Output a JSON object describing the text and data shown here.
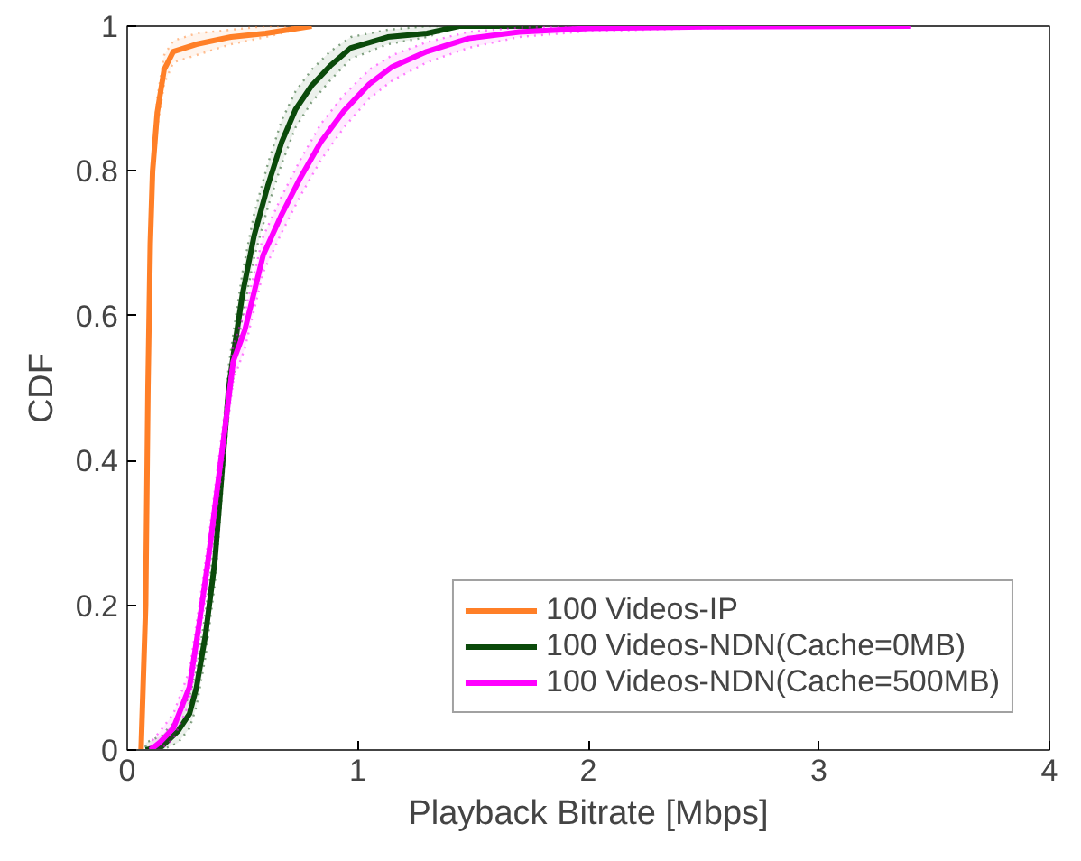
{
  "chart_data": {
    "type": "line",
    "xlabel": "Playback Bitrate [Mbps]",
    "ylabel": "CDF",
    "xlim": [
      0,
      4
    ],
    "ylim": [
      0,
      1
    ],
    "xticks": [
      0,
      1,
      2,
      3,
      4
    ],
    "yticks": [
      0,
      0.2,
      0.4,
      0.6,
      0.8,
      1
    ],
    "grid": false,
    "legend": "bottom right",
    "line_style": "solid",
    "marker": "none",
    "series": [
      {
        "name": "100 Videos-IP",
        "color": "#ff7f27",
        "x": [
          0.06,
          0.08,
          0.09,
          0.1,
          0.11,
          0.13,
          0.16,
          0.2,
          0.3,
          0.45,
          0.6,
          0.8
        ],
        "values": [
          0,
          0.2,
          0.5,
          0.7,
          0.8,
          0.88,
          0.94,
          0.965,
          0.975,
          0.985,
          0.99,
          1
        ],
        "lower": [
          0,
          0.18,
          0.48,
          0.68,
          0.78,
          0.86,
          0.92,
          0.95,
          0.96,
          0.975,
          0.985,
          1
        ],
        "upper": [
          0.02,
          0.22,
          0.52,
          0.72,
          0.82,
          0.9,
          0.96,
          0.98,
          0.99,
          0.995,
          1,
          1
        ]
      },
      {
        "name": "100 Videos-NDN(Cache=0MB)",
        "color": "#0b4a0b",
        "x": [
          0.08,
          0.15,
          0.22,
          0.27,
          0.3,
          0.34,
          0.38,
          0.41,
          0.44,
          0.46,
          0.5,
          0.55,
          0.61,
          0.67,
          0.73,
          0.8,
          0.88,
          0.97,
          1.13,
          1.3,
          1.44,
          1.8
        ],
        "values": [
          0,
          0.005,
          0.026,
          0.05,
          0.086,
          0.16,
          0.26,
          0.38,
          0.5,
          0.545,
          0.63,
          0.71,
          0.78,
          0.84,
          0.885,
          0.918,
          0.945,
          0.97,
          0.985,
          0.99,
          1,
          1
        ],
        "lower": [
          0,
          0,
          0.01,
          0.03,
          0.06,
          0.13,
          0.23,
          0.35,
          0.47,
          0.515,
          0.6,
          0.68,
          0.75,
          0.81,
          0.86,
          0.895,
          0.925,
          0.955,
          0.975,
          0.985,
          1,
          1
        ],
        "upper": [
          0.01,
          0.02,
          0.045,
          0.075,
          0.11,
          0.19,
          0.29,
          0.41,
          0.53,
          0.575,
          0.66,
          0.74,
          0.81,
          0.87,
          0.91,
          0.94,
          0.965,
          0.985,
          0.995,
          1,
          1,
          1
        ]
      },
      {
        "name": "100 Videos-NDN(Cache=500MB)",
        "color": "#ff00ff",
        "x": [
          0.1,
          0.14,
          0.2,
          0.27,
          0.31,
          0.35,
          0.39,
          0.43,
          0.46,
          0.51,
          0.59,
          0.67,
          0.75,
          0.84,
          0.94,
          1.05,
          1.15,
          1.3,
          1.48,
          1.7,
          2.0,
          2.5,
          3.4
        ],
        "values": [
          0,
          0.01,
          0.03,
          0.087,
          0.17,
          0.26,
          0.36,
          0.46,
          0.537,
          0.58,
          0.684,
          0.74,
          0.79,
          0.84,
          0.883,
          0.92,
          0.944,
          0.965,
          0.983,
          0.992,
          0.997,
          0.999,
          1
        ],
        "lower": [
          0,
          0,
          0.015,
          0.065,
          0.145,
          0.235,
          0.335,
          0.435,
          0.51,
          0.555,
          0.66,
          0.715,
          0.765,
          0.815,
          0.86,
          0.9,
          0.925,
          0.95,
          0.97,
          0.985,
          0.993,
          0.997,
          1
        ],
        "upper": [
          0.01,
          0.025,
          0.05,
          0.11,
          0.195,
          0.285,
          0.385,
          0.485,
          0.56,
          0.605,
          0.71,
          0.765,
          0.815,
          0.865,
          0.905,
          0.94,
          0.96,
          0.978,
          0.992,
          0.998,
          1,
          1,
          1
        ]
      }
    ]
  }
}
